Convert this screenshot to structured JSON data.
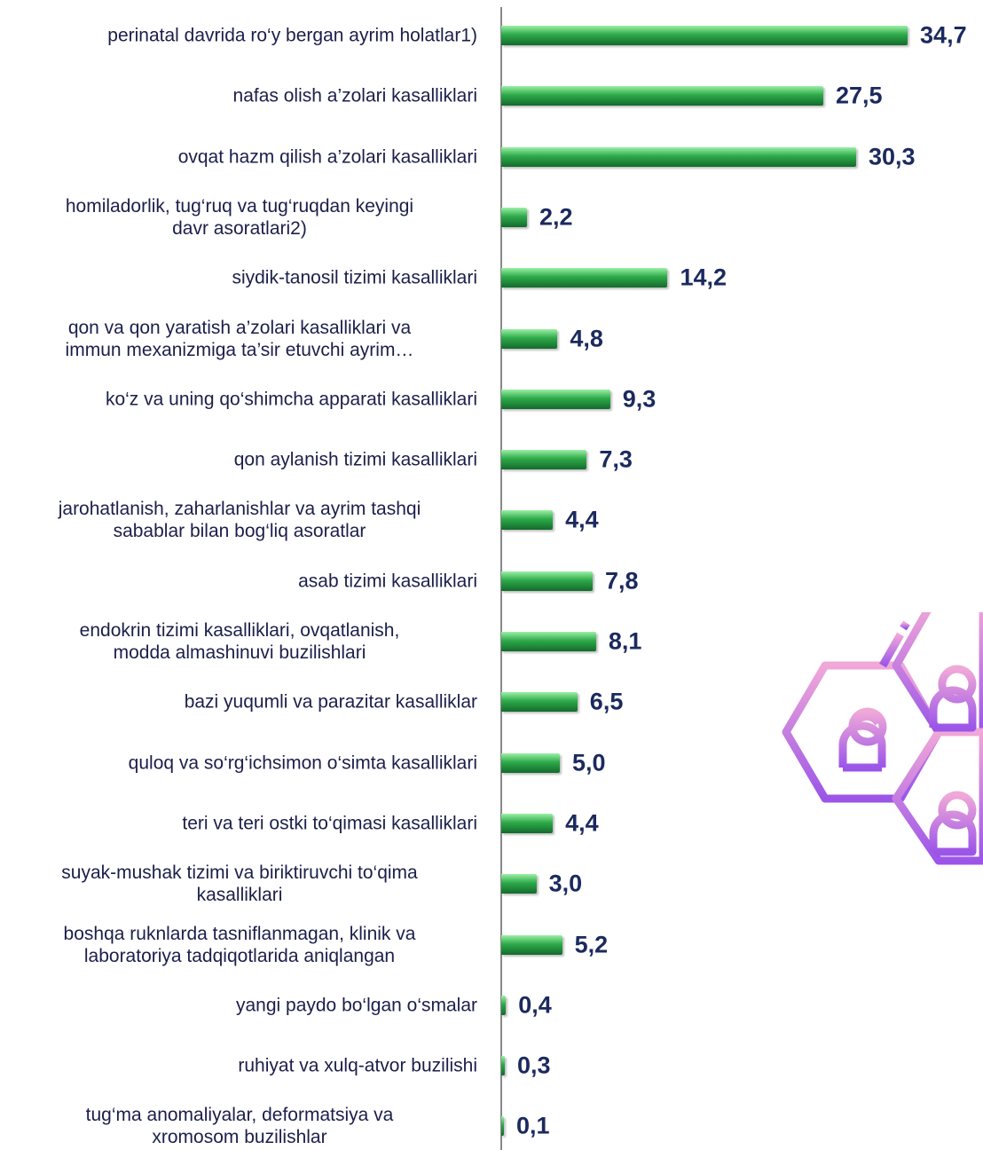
{
  "chart_data": {
    "type": "bar",
    "orientation": "horizontal",
    "color": "#2eaa4a",
    "categories": [
      "perinatal davrida ro‘y bergan ayrim holatlar1)",
      "nafas olish a’zolari kasalliklari",
      "ovqat hazm qilish a’zolari kasalliklari",
      "homiladorlik, tug‘ruq va  tug‘ruqdan keyingi\ndavr asoratlari2)",
      "siydik-tanosil tizimi kasalliklari",
      "qon va qon yaratish a’zolari kasalliklari va\nimmun mexanizmiga ta’sir etuvchi ayrim…",
      "ko‘z va uning qo‘shimcha apparati kasalliklari",
      "qon aylanish tizimi kasalliklari",
      "jarohatlanish, zaharlanishlar va ayrim tashqi\nsabablar bilan bog‘liq asoratlar",
      "asab tizimi kasalliklari",
      "endokrin tizimi kasalliklari, ovqatlanish,\nmodda almashinuvi buzilishlari",
      "bazi yuqumli va parazitar kasalliklar",
      "quloq va so‘rg‘ichsimon o‘simta kasalliklari",
      "teri va teri ostki to‘qimasi  kasalliklari",
      "suyak-mushak tizimi va biriktiruvchi to‘qima\nkasalliklari",
      "boshqa ruknlarda tasniflanmagan, klinik va\nlaboratoriya tadqiqotlarida aniqlangan",
      "yangi paydo bo‘lgan o‘smalar",
      "ruhiyat va xulq-atvor buzilishi",
      "tug‘ma anomaliyalar, deformatsiya va\nxromosom buzilishlar"
    ],
    "values": [
      34.7,
      27.5,
      30.3,
      2.2,
      14.2,
      4.8,
      9.3,
      7.3,
      4.4,
      7.8,
      8.1,
      6.5,
      5.0,
      4.4,
      3.0,
      5.2,
      0.4,
      0.3,
      0.1
    ],
    "value_labels": [
      "34,7",
      "27,5",
      "30,3",
      "2,2",
      "14,2",
      "4,8",
      "9,3",
      "7,3",
      "4,4",
      "7,8",
      "8,1",
      "6,5",
      "5,0",
      "4,4",
      "3,0",
      "5,2",
      "0,4",
      "0,3",
      "0,1"
    ]
  }
}
